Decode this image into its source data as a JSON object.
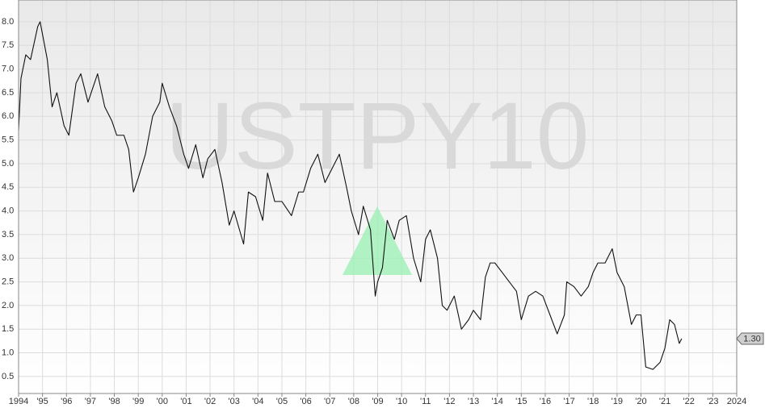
{
  "chart_data": {
    "type": "line",
    "watermark": "USTPY10",
    "color": "#111111",
    "x": [
      1994.0,
      1994.1,
      1994.3,
      1994.5,
      1994.8,
      1994.9,
      1995.2,
      1995.4,
      1995.6,
      1995.9,
      1996.1,
      1996.4,
      1996.6,
      1996.9,
      1997.1,
      1997.3,
      1997.6,
      1997.9,
      1998.1,
      1998.4,
      1998.6,
      1998.8,
      1999.0,
      1999.3,
      1999.6,
      1999.9,
      2000.0,
      2000.3,
      2000.6,
      2000.9,
      2001.1,
      2001.4,
      2001.7,
      2001.9,
      2002.2,
      2002.5,
      2002.8,
      2003.0,
      2003.4,
      2003.6,
      2003.9,
      2004.2,
      2004.4,
      2004.7,
      2005.0,
      2005.4,
      2005.7,
      2005.9,
      2006.2,
      2006.5,
      2006.8,
      2007.0,
      2007.4,
      2007.7,
      2007.9,
      2008.2,
      2008.4,
      2008.7,
      2008.9,
      2009.0,
      2009.2,
      2009.4,
      2009.7,
      2009.9,
      2010.2,
      2010.5,
      2010.8,
      2011.0,
      2011.2,
      2011.5,
      2011.7,
      2011.9,
      2012.2,
      2012.5,
      2012.8,
      2013.0,
      2013.3,
      2013.5,
      2013.7,
      2013.9,
      2014.2,
      2014.5,
      2014.8,
      2015.0,
      2015.3,
      2015.6,
      2015.9,
      2016.2,
      2016.5,
      2016.8,
      2016.9,
      2017.2,
      2017.5,
      2017.8,
      2018.0,
      2018.2,
      2018.5,
      2018.8,
      2019.0,
      2019.3,
      2019.6,
      2019.8,
      2020.0,
      2020.2,
      2020.5,
      2020.8,
      2021.0,
      2021.2,
      2021.4,
      2021.6,
      2021.7
    ],
    "values": [
      5.7,
      6.8,
      7.3,
      7.2,
      7.9,
      8.0,
      7.2,
      6.2,
      6.5,
      5.8,
      5.6,
      6.7,
      6.9,
      6.3,
      6.6,
      6.9,
      6.2,
      5.9,
      5.6,
      5.6,
      5.3,
      4.4,
      4.7,
      5.2,
      6.0,
      6.3,
      6.7,
      6.2,
      5.8,
      5.2,
      4.9,
      5.4,
      4.7,
      5.1,
      5.3,
      4.6,
      3.7,
      4.0,
      3.3,
      4.4,
      4.3,
      3.8,
      4.8,
      4.2,
      4.2,
      3.9,
      4.4,
      4.4,
      4.9,
      5.2,
      4.6,
      4.8,
      5.2,
      4.5,
      4.0,
      3.5,
      4.1,
      3.6,
      2.2,
      2.5,
      2.8,
      3.8,
      3.4,
      3.8,
      3.9,
      3.0,
      2.5,
      3.4,
      3.6,
      3.0,
      2.0,
      1.9,
      2.2,
      1.5,
      1.7,
      1.9,
      1.7,
      2.6,
      2.9,
      2.9,
      2.7,
      2.5,
      2.3,
      1.7,
      2.2,
      2.3,
      2.2,
      1.8,
      1.4,
      1.8,
      2.5,
      2.4,
      2.2,
      2.4,
      2.7,
      2.9,
      2.9,
      3.2,
      2.7,
      2.4,
      1.6,
      1.8,
      1.8,
      0.7,
      0.65,
      0.8,
      1.1,
      1.7,
      1.6,
      1.2,
      1.3
    ],
    "last_value": {
      "value": 1.3,
      "label": "1.30"
    },
    "xlim": [
      1994,
      2024
    ],
    "xticks": [
      1994,
      {
        "value": 1995,
        "label": "'95"
      },
      {
        "value": 1996,
        "label": "'96"
      },
      {
        "value": 1997,
        "label": "'97"
      },
      {
        "value": 1998,
        "label": "'98"
      },
      {
        "value": 1999,
        "label": "'99"
      },
      {
        "value": 2000,
        "label": "'00"
      },
      {
        "value": 2001,
        "label": "'01"
      },
      {
        "value": 2002,
        "label": "'02"
      },
      {
        "value": 2003,
        "label": "'03"
      },
      {
        "value": 2004,
        "label": "'04"
      },
      {
        "value": 2005,
        "label": "'05"
      },
      {
        "value": 2006,
        "label": "'06"
      },
      {
        "value": 2007,
        "label": "'07"
      },
      {
        "value": 2008,
        "label": "'08"
      },
      {
        "value": 2009,
        "label": "'09"
      },
      {
        "value": 2010,
        "label": "'10"
      },
      {
        "value": 2011,
        "label": "'11"
      },
      {
        "value": 2012,
        "label": "'12"
      },
      {
        "value": 2013,
        "label": "'13"
      },
      {
        "value": 2014,
        "label": "'14"
      },
      {
        "value": 2015,
        "label": "'15"
      },
      {
        "value": 2016,
        "label": "'16"
      },
      {
        "value": 2017,
        "label": "'17"
      },
      {
        "value": 2018,
        "label": "'18"
      },
      {
        "value": 2019,
        "label": "'19"
      },
      {
        "value": 2020,
        "label": "'20"
      },
      {
        "value": 2021,
        "label": "'21"
      },
      {
        "value": 2022,
        "label": "'22"
      },
      {
        "value": 2023,
        "label": "'23"
      },
      2024
    ],
    "ylim": [
      0.14,
      8.46
    ],
    "yticks": [
      0.5,
      {
        "value": 1,
        "label": "1.0"
      },
      1.5,
      {
        "value": 2,
        "label": "2.0"
      },
      2.5,
      {
        "value": 3,
        "label": "3.0"
      },
      3.5,
      {
        "value": 4,
        "label": "4.0"
      },
      4.5,
      {
        "value": 5,
        "label": "5.0"
      },
      5.5,
      {
        "value": 6,
        "label": "6.0"
      },
      6.5,
      {
        "value": 7,
        "label": "7.0"
      },
      7.5,
      {
        "value": 8,
        "label": "8.0"
      }
    ],
    "grid": true
  }
}
